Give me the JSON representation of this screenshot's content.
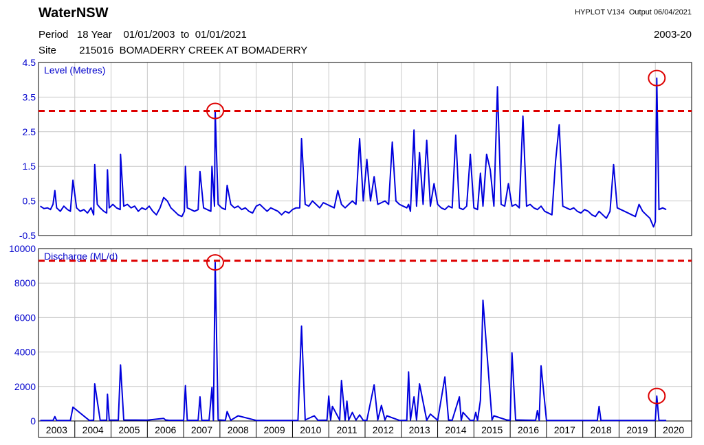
{
  "header": {
    "brand": "WaterNSW",
    "software": "HYPLOT V134",
    "output_label": "Output",
    "output_date": "06/04/2021",
    "period_label": "Period",
    "period_years": "18 Year",
    "start_date": "01/01/2003",
    "to_label": "to",
    "end_date": "01/01/2021",
    "site_label": "Site",
    "site_id": "215016",
    "site_name": "BOMADERRY CREEK AT BOMADERRY",
    "range_label": "2003-20"
  },
  "colors": {
    "series": "#0000dd",
    "threshold": "#dd0000",
    "highlight": "#dd0000",
    "grid": "#c8c8c8",
    "axis_text": "#0000cc"
  },
  "chart_data": [
    {
      "type": "line",
      "title": "Level (Metres)",
      "ylim": [
        -0.5,
        4.5
      ],
      "yticks": [
        "4.5",
        "3.5",
        "2.5",
        "1.5",
        "0.5",
        "-0.5"
      ],
      "ytick_values": [
        4.5,
        3.5,
        2.5,
        1.5,
        0.5,
        -0.5
      ],
      "xlim": [
        2003.0,
        2021.0
      ],
      "grid": true,
      "threshold": 3.1,
      "highlighted_peaks": [
        {
          "x": 2007.87,
          "y": 3.1
        },
        {
          "x": 2020.04,
          "y": 4.05
        }
      ],
      "series": [
        {
          "x": [
            2003.05,
            2003.15,
            2003.25,
            2003.33,
            2003.4,
            2003.45,
            2003.5,
            2003.6,
            2003.7,
            2003.8,
            2003.88,
            2003.95,
            2004.05,
            2004.15,
            2004.25,
            2004.35,
            2004.45,
            2004.52,
            2004.55,
            2004.62,
            2004.7,
            2004.8,
            2004.88,
            2004.9,
            2004.95,
            2005.05,
            2005.15,
            2005.25,
            2005.26,
            2005.35,
            2005.45,
            2005.55,
            2005.65,
            2005.75,
            2005.85,
            2005.95,
            2006.05,
            2006.15,
            2006.25,
            2006.35,
            2006.45,
            2006.55,
            2006.65,
            2006.75,
            2006.85,
            2006.95,
            2007.02,
            2007.05,
            2007.1,
            2007.2,
            2007.3,
            2007.4,
            2007.45,
            2007.55,
            2007.65,
            2007.75,
            2007.78,
            2007.85,
            2007.87,
            2007.95,
            2008.05,
            2008.15,
            2008.2,
            2008.3,
            2008.4,
            2008.5,
            2008.6,
            2008.7,
            2008.8,
            2008.9,
            2009.0,
            2009.1,
            2009.2,
            2009.3,
            2009.4,
            2009.5,
            2009.6,
            2009.7,
            2009.8,
            2009.9,
            2010.0,
            2010.1,
            2010.2,
            2010.25,
            2010.35,
            2010.45,
            2010.55,
            2010.65,
            2010.75,
            2010.85,
            2010.95,
            2011.05,
            2011.15,
            2011.25,
            2011.35,
            2011.45,
            2011.55,
            2011.65,
            2011.75,
            2011.85,
            2011.95,
            2012.05,
            2012.15,
            2012.25,
            2012.35,
            2012.45,
            2012.55,
            2012.65,
            2012.75,
            2012.85,
            2012.95,
            2013.05,
            2013.15,
            2013.2,
            2013.25,
            2013.35,
            2013.42,
            2013.5,
            2013.6,
            2013.7,
            2013.8,
            2013.9,
            2014.0,
            2014.1,
            2014.2,
            2014.3,
            2014.4,
            2014.5,
            2014.6,
            2014.7,
            2014.8,
            2014.9,
            2015.0,
            2015.1,
            2015.18,
            2015.25,
            2015.35,
            2015.45,
            2015.55,
            2015.65,
            2015.75,
            2015.85,
            2015.95,
            2016.05,
            2016.15,
            2016.25,
            2016.35,
            2016.45,
            2016.55,
            2016.65,
            2016.75,
            2016.85,
            2016.95,
            2017.05,
            2017.15,
            2017.25,
            2017.35,
            2017.45,
            2017.55,
            2017.65,
            2017.75,
            2017.85,
            2017.95,
            2018.05,
            2018.15,
            2018.25,
            2018.35,
            2018.45,
            2018.55,
            2018.65,
            2018.75,
            2018.85,
            2018.95,
            2019.05,
            2019.15,
            2019.25,
            2019.35,
            2019.45,
            2019.55,
            2019.65,
            2019.75,
            2019.85,
            2019.95,
            2020.0,
            2020.04,
            2020.1,
            2020.2,
            2020.3
          ],
          "y": [
            0.35,
            0.28,
            0.3,
            0.25,
            0.4,
            0.8,
            0.3,
            0.2,
            0.35,
            0.25,
            0.2,
            1.1,
            0.3,
            0.2,
            0.25,
            0.15,
            0.3,
            0.1,
            1.55,
            0.4,
            0.3,
            0.2,
            0.15,
            1.4,
            0.3,
            0.4,
            0.3,
            0.25,
            1.85,
            0.35,
            0.4,
            0.3,
            0.35,
            0.2,
            0.3,
            0.25,
            0.35,
            0.2,
            0.1,
            0.3,
            0.6,
            0.5,
            0.3,
            0.2,
            0.1,
            0.05,
            0.2,
            1.5,
            0.3,
            0.25,
            0.2,
            0.25,
            1.35,
            0.3,
            0.25,
            0.2,
            1.5,
            0.35,
            3.1,
            0.4,
            0.3,
            0.25,
            0.95,
            0.4,
            0.3,
            0.35,
            0.25,
            0.3,
            0.2,
            0.15,
            0.35,
            0.4,
            0.3,
            0.2,
            0.3,
            0.25,
            0.2,
            0.1,
            0.2,
            0.15,
            0.25,
            0.3,
            0.3,
            2.3,
            0.4,
            0.35,
            0.5,
            0.4,
            0.3,
            0.45,
            0.4,
            0.35,
            0.3,
            0.8,
            0.4,
            0.3,
            0.4,
            0.5,
            0.4,
            2.3,
            0.5,
            1.7,
            0.5,
            1.2,
            0.4,
            0.45,
            0.5,
            0.4,
            2.2,
            0.5,
            0.4,
            0.35,
            0.3,
            0.4,
            0.2,
            2.55,
            0.35,
            1.9,
            0.4,
            2.25,
            0.35,
            1.0,
            0.4,
            0.3,
            0.25,
            0.35,
            0.3,
            2.4,
            0.3,
            0.25,
            0.35,
            1.85,
            0.3,
            0.25,
            1.3,
            0.35,
            1.85,
            1.4,
            0.35,
            3.8,
            0.4,
            0.35,
            1.0,
            0.35,
            0.4,
            0.3,
            2.95,
            0.35,
            0.4,
            0.3,
            0.25,
            0.35,
            0.2,
            0.15,
            0.1,
            1.65,
            2.7,
            0.35,
            0.3,
            0.25,
            0.3,
            0.2,
            0.15,
            0.25,
            0.2,
            0.1,
            0.05,
            0.2,
            0.1,
            0.0,
            0.2,
            1.55,
            0.3,
            0.25,
            0.2,
            0.15,
            0.1,
            0.05,
            0.4,
            0.2,
            0.1,
            0.0,
            -0.25,
            -0.1,
            4.05,
            0.25,
            0.3,
            0.25
          ]
        }
      ]
    },
    {
      "type": "line",
      "title": "Discharge (ML/d)",
      "ylim": [
        0,
        10000
      ],
      "yticks": [
        "10000",
        "8000",
        "6000",
        "4000",
        "2000",
        "0"
      ],
      "ytick_values": [
        10000,
        8000,
        6000,
        4000,
        2000,
        0
      ],
      "xlim": [
        2003.0,
        2021.0
      ],
      "x_tick_labels": [
        "2003",
        "2004",
        "2005",
        "2006",
        "2007",
        "2008",
        "2009",
        "2010",
        "2011",
        "2012",
        "2013",
        "2014",
        "2015",
        "2016",
        "2017",
        "2018",
        "2019",
        "2020"
      ],
      "grid": true,
      "threshold": 9300,
      "highlighted_peaks": [
        {
          "x": 2007.87,
          "y": 9200
        },
        {
          "x": 2020.04,
          "y": 1450
        }
      ],
      "series": [
        {
          "x": [
            2003.05,
            2003.4,
            2003.45,
            2003.5,
            2003.8,
            2003.88,
            2003.95,
            2004.4,
            2004.52,
            2004.55,
            2004.7,
            2004.88,
            2004.9,
            2004.95,
            2005.2,
            2005.26,
            2005.35,
            2006.0,
            2006.45,
            2006.5,
            2006.6,
            2007.0,
            2007.05,
            2007.1,
            2007.4,
            2007.45,
            2007.5,
            2007.7,
            2007.78,
            2007.82,
            2007.87,
            2007.95,
            2008.15,
            2008.2,
            2008.3,
            2008.5,
            2009.0,
            2009.5,
            2010.15,
            2010.25,
            2010.35,
            2010.6,
            2010.7,
            2010.95,
            2011.0,
            2011.05,
            2011.1,
            2011.3,
            2011.35,
            2011.45,
            2011.5,
            2011.55,
            2011.65,
            2011.75,
            2011.85,
            2011.95,
            2012.05,
            2012.25,
            2012.35,
            2012.45,
            2012.55,
            2012.6,
            2012.95,
            2013.15,
            2013.2,
            2013.25,
            2013.35,
            2013.42,
            2013.5,
            2013.7,
            2013.8,
            2014.0,
            2014.2,
            2014.3,
            2014.4,
            2014.6,
            2014.65,
            2014.7,
            2014.9,
            2015.0,
            2015.05,
            2015.1,
            2015.18,
            2015.25,
            2015.5,
            2015.55,
            2015.9,
            2016.0,
            2016.05,
            2016.15,
            2016.7,
            2016.75,
            2016.8,
            2016.85,
            2017.0,
            2017.5,
            2018.0,
            2018.4,
            2018.45,
            2018.5,
            2019.0,
            2019.8,
            2020.0,
            2020.04,
            2020.1,
            2020.3
          ],
          "y": [
            30,
            30,
            250,
            30,
            30,
            30,
            800,
            30,
            50,
            2150,
            40,
            50,
            1550,
            50,
            50,
            3250,
            60,
            50,
            150,
            60,
            40,
            40,
            2050,
            40,
            40,
            1400,
            40,
            40,
            1950,
            40,
            9200,
            60,
            40,
            550,
            40,
            300,
            30,
            30,
            30,
            5500,
            60,
            300,
            40,
            50,
            1450,
            60,
            850,
            50,
            2350,
            50,
            1150,
            50,
            500,
            50,
            350,
            30,
            40,
            2100,
            60,
            900,
            60,
            300,
            30,
            40,
            2850,
            50,
            1400,
            60,
            2150,
            40,
            400,
            40,
            2550,
            60,
            40,
            1400,
            40,
            500,
            30,
            40,
            500,
            30,
            1200,
            7000,
            60,
            300,
            60,
            40,
            3950,
            60,
            40,
            600,
            40,
            3200,
            30,
            30,
            30,
            30,
            850,
            30,
            30,
            30,
            30,
            1450,
            30,
            30
          ]
        }
      ]
    }
  ]
}
